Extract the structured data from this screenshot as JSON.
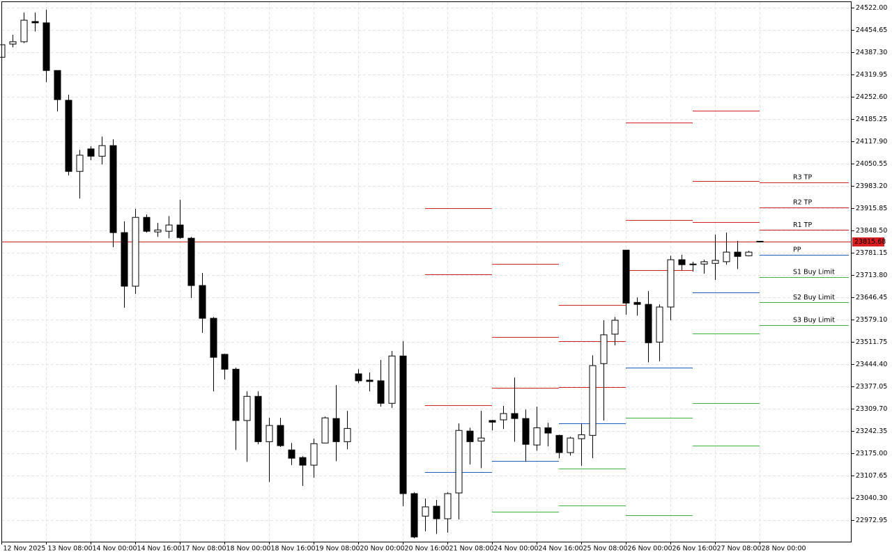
{
  "chart_data": {
    "type": "candlestick",
    "categories": [
      "12 Nov 2025",
      null,
      null,
      null,
      "13 Nov 08:00",
      null,
      null,
      null,
      "14 Nov 00:00",
      null,
      null,
      null,
      "14 Nov 16:00",
      null,
      null,
      null,
      "17 Nov 08:00",
      null,
      null,
      null,
      "18 Nov 00:00",
      null,
      null,
      null,
      "18 Nov 16:00",
      null,
      null,
      null,
      "19 Nov 08:00",
      null,
      null,
      null,
      "20 Nov 00:00",
      null,
      null,
      null,
      "20 Nov 16:00",
      null,
      null,
      null,
      "21 Nov 08:00",
      null,
      null,
      null,
      "24 Nov 00:00",
      null,
      null,
      null,
      "24 Nov 16:00",
      null,
      null,
      null,
      "25 Nov 08:00",
      null,
      null,
      null,
      "26 Nov 00:00",
      null,
      null,
      null,
      "26 Nov 16:00",
      null,
      null,
      null,
      "27 Nov 08:00",
      null,
      null,
      null,
      "28 Nov 00:00",
      null,
      null,
      null,
      null,
      null,
      null,
      null
    ],
    "open": [
      24372,
      24412,
      24419,
      24480,
      24476,
      24332,
      24242,
      24027,
      24095,
      24073,
      24105,
      23842,
      23680,
      23888,
      23844,
      23846,
      23865,
      23825,
      23682,
      23583,
      23474,
      23429,
      23274,
      23347,
      23210,
      23259,
      23185,
      23162,
      23139,
      23206,
      23280,
      23210,
      23415,
      23396,
      23394,
      23326,
      23469,
      23053,
      22985,
      23015,
      22977,
      23055,
      23242,
      23212,
      23274,
      23276,
      23295,
      23280,
      23200,
      23252,
      23229,
      23177,
      23219,
      23229,
      23446,
      23535,
      23789,
      23631,
      23625,
      23511,
      23617,
      23760,
      23745,
      23747,
      23749,
      23754,
      23783,
      23772,
      23815,
      null,
      null,
      null,
      null,
      null,
      null,
      null
    ],
    "high": [
      24415,
      24440,
      24507,
      24507,
      24516,
      24332,
      24259,
      24092,
      24103,
      24132,
      24124,
      23876,
      23914,
      23897,
      23871,
      23892,
      23941,
      23829,
      23720,
      23587,
      23476,
      23434,
      23362,
      23362,
      23282,
      23282,
      23206,
      23166,
      23219,
      23286,
      23381,
      23303,
      23429,
      23419,
      23457,
      23484,
      23514,
      23057,
      23038,
      23034,
      23057,
      23265,
      23252,
      23303,
      23276,
      23318,
      23404,
      23307,
      23316,
      23267,
      23231,
      23225,
      23265,
      23471,
      23577,
      23587,
      23789,
      23646,
      23665,
      23625,
      23772,
      23775,
      23754,
      23760,
      23836,
      23842,
      23817,
      23787,
      23817,
      null,
      null,
      null,
      null,
      null,
      null,
      null
    ],
    "low": [
      24368,
      24402,
      24415,
      24450,
      24297,
      24208,
      24015,
      23945,
      24061,
      24048,
      23798,
      23615,
      23657,
      23842,
      23829,
      23825,
      23823,
      23644,
      23539,
      23362,
      23398,
      23185,
      23149,
      23202,
      23088,
      23194,
      23139,
      23076,
      23101,
      23206,
      23151,
      23187,
      23387,
      23362,
      23316,
      23312,
      23015,
      22918,
      22939,
      22931,
      22935,
      22975,
      23141,
      23130,
      23244,
      23248,
      23210,
      23149,
      23183,
      23196,
      23160,
      23168,
      23137,
      23160,
      23274,
      23501,
      23594,
      23591,
      23450,
      23453,
      23577,
      23728,
      23724,
      23718,
      23699,
      23745,
      23732,
      23770,
      23814,
      null,
      null,
      null,
      null,
      null,
      null,
      null
    ],
    "close": [
      24410,
      24419,
      24484,
      24476,
      24332,
      24244,
      24027,
      24076,
      24073,
      24105,
      23842,
      23680,
      23888,
      23846,
      23850,
      23865,
      23827,
      23682,
      23583,
      23465,
      23429,
      23274,
      23347,
      23210,
      23259,
      23198,
      23160,
      23139,
      23204,
      23282,
      23210,
      23250,
      23394,
      23392,
      23326,
      23469,
      23053,
      22922,
      23013,
      22977,
      23053,
      23244,
      23210,
      23221,
      23269,
      23295,
      23280,
      23202,
      23252,
      23236,
      23177,
      23221,
      23231,
      23440,
      23533,
      23577,
      23629,
      23625,
      23509,
      23617,
      23760,
      23745,
      23747,
      23754,
      23758,
      23783,
      23770,
      23783,
      23815.68,
      null,
      null,
      null,
      null,
      null,
      null,
      null
    ],
    "series": [
      {
        "name": "R3 TP",
        "color": "#d81e1e",
        "values": [
          null,
          null,
          null,
          null,
          null,
          null,
          null,
          null,
          null,
          null,
          null,
          null,
          null,
          null,
          null,
          null,
          null,
          null,
          null,
          null,
          null,
          null,
          null,
          null,
          null,
          null,
          null,
          null,
          null,
          null,
          null,
          null,
          null,
          null,
          null,
          null,
          null,
          null,
          23916,
          23916,
          23916,
          23916,
          23916,
          23916,
          23747,
          23747,
          23747,
          23747,
          23747,
          23747,
          23623,
          23623,
          23623,
          23623,
          23623,
          23623,
          24175,
          24175,
          24175,
          24175,
          24175,
          24175,
          24210,
          24210,
          24210,
          24210,
          24210,
          24210,
          23994,
          23994,
          23994,
          23994,
          23994,
          23994,
          23994,
          23994
        ]
      },
      {
        "name": "R2 TP",
        "color": "#d81e1e",
        "values": [
          null,
          null,
          null,
          null,
          null,
          null,
          null,
          null,
          null,
          null,
          null,
          null,
          null,
          null,
          null,
          null,
          null,
          null,
          null,
          null,
          null,
          null,
          null,
          null,
          null,
          null,
          null,
          null,
          null,
          null,
          null,
          null,
          null,
          null,
          null,
          null,
          null,
          null,
          23716,
          23716,
          23716,
          23716,
          23716,
          23716,
          23526,
          23526,
          23526,
          23526,
          23526,
          23526,
          23514,
          23514,
          23514,
          23514,
          23514,
          23514,
          23880,
          23880,
          23880,
          23880,
          23880,
          23880,
          23998,
          23998,
          23998,
          23998,
          23998,
          23998,
          23918,
          23918,
          23918,
          23918,
          23918,
          23918,
          23918,
          23918
        ]
      },
      {
        "name": "R1 TP",
        "color": "#d81e1e",
        "values": [
          null,
          null,
          null,
          null,
          null,
          null,
          null,
          null,
          null,
          null,
          null,
          null,
          null,
          null,
          null,
          null,
          null,
          null,
          null,
          null,
          null,
          null,
          null,
          null,
          null,
          null,
          null,
          null,
          null,
          null,
          null,
          null,
          null,
          null,
          null,
          null,
          null,
          null,
          23320,
          23320,
          23320,
          23320,
          23320,
          23320,
          23373,
          23373,
          23373,
          23373,
          23373,
          23373,
          23375,
          23375,
          23375,
          23375,
          23375,
          23375,
          23728,
          23728,
          23728,
          23728,
          23728,
          23728,
          23874,
          23874,
          23874,
          23874,
          23874,
          23874,
          23850,
          23850,
          23850,
          23850,
          23850,
          23850,
          23850,
          23850
        ]
      },
      {
        "name": "PP",
        "color": "#1d5bc4",
        "values": [
          null,
          null,
          null,
          null,
          null,
          null,
          null,
          null,
          null,
          null,
          null,
          null,
          null,
          null,
          null,
          null,
          null,
          null,
          null,
          null,
          null,
          null,
          null,
          null,
          null,
          null,
          null,
          null,
          null,
          null,
          null,
          null,
          null,
          null,
          null,
          null,
          null,
          null,
          23118,
          23118,
          23118,
          23118,
          23118,
          23118,
          23151,
          23151,
          23151,
          23151,
          23151,
          23151,
          23265,
          23265,
          23265,
          23265,
          23265,
          23265,
          23434,
          23434,
          23434,
          23434,
          23434,
          23434,
          23661,
          23661,
          23661,
          23661,
          23661,
          23661,
          23775,
          23775,
          23775,
          23775,
          23775,
          23775,
          23775,
          23775
        ]
      },
      {
        "name": "S1 Buy Limit",
        "color": "#3cb43c",
        "values": [
          null,
          null,
          null,
          null,
          null,
          null,
          null,
          null,
          null,
          null,
          null,
          null,
          null,
          null,
          null,
          null,
          null,
          null,
          null,
          null,
          null,
          null,
          null,
          null,
          null,
          null,
          null,
          null,
          null,
          null,
          null,
          null,
          null,
          null,
          null,
          null,
          null,
          null,
          null,
          null,
          null,
          null,
          null,
          null,
          22998,
          22998,
          22998,
          22998,
          22998,
          22998,
          23128,
          23128,
          23128,
          23128,
          23128,
          23128,
          23282,
          23282,
          23282,
          23282,
          23282,
          23282,
          23537,
          23537,
          23537,
          23537,
          23537,
          23537,
          23707,
          23707,
          23707,
          23707,
          23707,
          23707,
          23707,
          23707
        ]
      },
      {
        "name": "S2 Buy Limit",
        "color": "#3cb43c",
        "values": [
          null,
          null,
          null,
          null,
          null,
          null,
          null,
          null,
          null,
          null,
          null,
          null,
          null,
          null,
          null,
          null,
          null,
          null,
          null,
          null,
          null,
          null,
          null,
          null,
          null,
          null,
          null,
          null,
          null,
          null,
          null,
          null,
          null,
          null,
          null,
          null,
          null,
          null,
          null,
          null,
          null,
          null,
          null,
          null,
          null,
          null,
          null,
          null,
          null,
          null,
          23017,
          23017,
          23017,
          23017,
          23017,
          23017,
          22987,
          22987,
          22987,
          22987,
          22987,
          22987,
          23326,
          23326,
          23326,
          23326,
          23326,
          23326,
          23631,
          23631,
          23631,
          23631,
          23631,
          23631,
          23631,
          23631
        ]
      },
      {
        "name": "S3 Buy Limit",
        "color": "#3cb43c",
        "values": [
          null,
          null,
          null,
          null,
          null,
          null,
          null,
          null,
          null,
          null,
          null,
          null,
          null,
          null,
          null,
          null,
          null,
          null,
          null,
          null,
          null,
          null,
          null,
          null,
          null,
          null,
          null,
          null,
          null,
          null,
          null,
          null,
          null,
          null,
          null,
          null,
          null,
          null,
          null,
          null,
          null,
          null,
          null,
          null,
          null,
          null,
          null,
          null,
          null,
          null,
          null,
          null,
          null,
          null,
          null,
          null,
          null,
          null,
          null,
          null,
          null,
          null,
          23198,
          23198,
          23198,
          23198,
          23198,
          23198,
          23562,
          23562,
          23562,
          23562,
          23562,
          23562,
          23562,
          23562
        ]
      }
    ],
    "current_price": 23815.68,
    "current_price_color": "#d81e1e",
    "ylim": [
      22907.7,
      24540.9
    ],
    "yticks": [
      {
        "value": 24522,
        "label": "24522.00"
      },
      24454.65,
      {
        "value": 24387.3,
        "label": "24387.30"
      },
      24319.95,
      {
        "value": 24252.6,
        "label": "24252.60"
      },
      24185.25,
      {
        "value": 24117.9,
        "label": "24117.90"
      },
      24050.55,
      {
        "value": 23983.2,
        "label": "23983.20"
      },
      23915.85,
      {
        "value": 23848.5,
        "label": "23848.50"
      },
      23781.15,
      {
        "value": 23713.8,
        "label": "23713.80"
      },
      23646.45,
      {
        "value": 23579.1,
        "label": "23579.10"
      },
      23511.75,
      {
        "value": 23444.4,
        "label": "23444.40"
      },
      23377.05,
      {
        "value": 23309.7,
        "label": "23309.70"
      },
      23242.35,
      {
        "value": 23175,
        "label": "23175.00"
      },
      23107.65,
      {
        "value": 23040.3,
        "label": "23040.30"
      },
      22972.95
    ],
    "grid": true
  }
}
